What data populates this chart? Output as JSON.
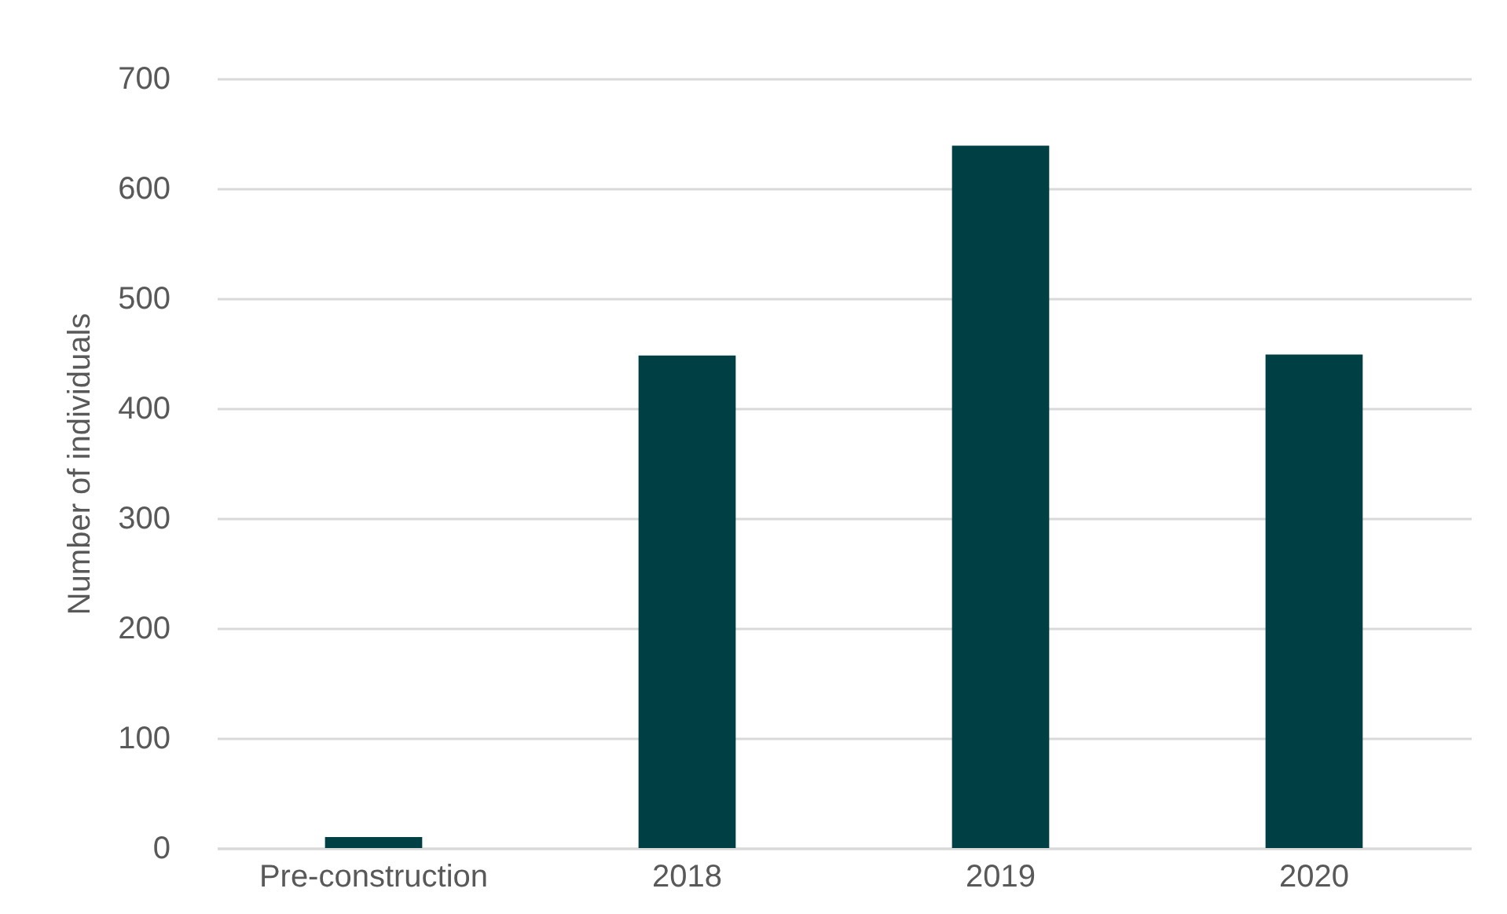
{
  "chart_data": {
    "type": "bar",
    "ylabel": "Number of individuals",
    "categories": [
      "Pre-construction",
      "2018",
      "2019",
      "2020"
    ],
    "values": [
      10,
      448,
      639,
      449
    ],
    "color": "#004045",
    "ylim": [
      0,
      700
    ],
    "yticks": [
      0,
      100,
      200,
      300,
      400,
      500,
      600,
      700
    ],
    "grid": "y"
  }
}
